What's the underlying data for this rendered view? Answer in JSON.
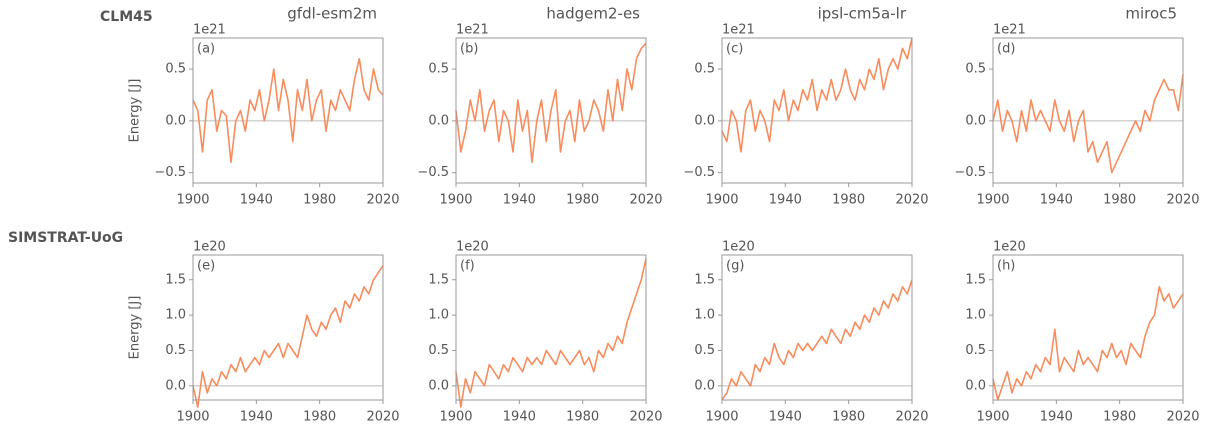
{
  "row_labels": [
    "CLM45",
    "SIMSTRAT-UoG"
  ],
  "chart_data": [
    {
      "type": "line",
      "title": "gfdl-esm2m",
      "panel_label": "(a)",
      "scale_label": "1e21",
      "ylabel": "Energy [J]",
      "x": [
        1900,
        1903,
        1906,
        1909,
        1912,
        1915,
        1918,
        1921,
        1924,
        1927,
        1930,
        1933,
        1936,
        1939,
        1942,
        1945,
        1948,
        1951,
        1954,
        1957,
        1960,
        1963,
        1966,
        1969,
        1972,
        1975,
        1978,
        1981,
        1984,
        1987,
        1990,
        1993,
        1996,
        1999,
        2002,
        2005,
        2008,
        2011,
        2014,
        2017,
        2020
      ],
      "values": [
        0.2,
        0.1,
        -0.3,
        0.2,
        0.3,
        -0.1,
        0.1,
        0.05,
        -0.4,
        0.0,
        0.1,
        -0.1,
        0.2,
        0.1,
        0.3,
        0.0,
        0.2,
        0.5,
        0.1,
        0.4,
        0.2,
        -0.2,
        0.3,
        0.1,
        0.4,
        0.0,
        0.2,
        0.3,
        -0.1,
        0.2,
        0.1,
        0.3,
        0.2,
        0.1,
        0.4,
        0.6,
        0.3,
        0.2,
        0.5,
        0.3,
        0.25
      ],
      "color": "#f98b5c",
      "hline": 0,
      "xlim": [
        1900,
        2020
      ],
      "xticks": [
        1900,
        1940,
        1980,
        2020
      ],
      "ylim": [
        -0.6,
        0.8
      ],
      "yticks": [
        {
          "value": -0.5,
          "label": "−0.5"
        },
        {
          "value": 0,
          "label": "0.0"
        },
        0.5
      ]
    },
    {
      "type": "line",
      "title": "hadgem2-es",
      "panel_label": "(b)",
      "scale_label": "1e21",
      "x": [
        1900,
        1903,
        1906,
        1909,
        1912,
        1915,
        1918,
        1921,
        1924,
        1927,
        1930,
        1933,
        1936,
        1939,
        1942,
        1945,
        1948,
        1951,
        1954,
        1957,
        1960,
        1963,
        1966,
        1969,
        1972,
        1975,
        1978,
        1981,
        1984,
        1987,
        1990,
        1993,
        1996,
        1999,
        2002,
        2005,
        2008,
        2011,
        2014,
        2017,
        2020
      ],
      "values": [
        0.1,
        -0.3,
        -0.1,
        0.2,
        0.0,
        0.3,
        -0.1,
        0.1,
        0.2,
        -0.2,
        0.1,
        0.0,
        -0.3,
        0.2,
        -0.1,
        0.1,
        -0.4,
        0.0,
        0.2,
        -0.2,
        0.1,
        0.3,
        -0.3,
        0.0,
        0.1,
        -0.2,
        0.2,
        -0.1,
        0.0,
        0.2,
        0.1,
        -0.1,
        0.3,
        0.0,
        0.4,
        0.1,
        0.5,
        0.3,
        0.6,
        0.7,
        0.75
      ],
      "color": "#f98b5c",
      "hline": 0,
      "xlim": [
        1900,
        2020
      ],
      "xticks": [
        1900,
        1940,
        1980,
        2020
      ],
      "ylim": [
        -0.6,
        0.8
      ],
      "yticks": [
        {
          "value": -0.5,
          "label": "−0.5"
        },
        {
          "value": 0,
          "label": "0.0"
        },
        0.5
      ]
    },
    {
      "type": "line",
      "title": "ipsl-cm5a-lr",
      "panel_label": "(c)",
      "scale_label": "1e21",
      "x": [
        1900,
        1903,
        1906,
        1909,
        1912,
        1915,
        1918,
        1921,
        1924,
        1927,
        1930,
        1933,
        1936,
        1939,
        1942,
        1945,
        1948,
        1951,
        1954,
        1957,
        1960,
        1963,
        1966,
        1969,
        1972,
        1975,
        1978,
        1981,
        1984,
        1987,
        1990,
        1993,
        1996,
        1999,
        2002,
        2005,
        2008,
        2011,
        2014,
        2017,
        2020
      ],
      "values": [
        -0.1,
        -0.2,
        0.1,
        0.0,
        -0.3,
        0.1,
        0.2,
        -0.1,
        0.1,
        0.0,
        -0.2,
        0.2,
        0.1,
        0.3,
        0.0,
        0.2,
        0.1,
        0.3,
        0.2,
        0.4,
        0.1,
        0.3,
        0.2,
        0.4,
        0.2,
        0.3,
        0.5,
        0.3,
        0.2,
        0.4,
        0.3,
        0.5,
        0.4,
        0.6,
        0.3,
        0.5,
        0.6,
        0.5,
        0.7,
        0.6,
        0.8
      ],
      "color": "#f98b5c",
      "hline": 0,
      "xlim": [
        1900,
        2020
      ],
      "xticks": [
        1900,
        1940,
        1980,
        2020
      ],
      "ylim": [
        -0.6,
        0.8
      ],
      "yticks": [
        {
          "value": -0.5,
          "label": "−0.5"
        },
        {
          "value": 0,
          "label": "0.0"
        },
        0.5
      ]
    },
    {
      "type": "line",
      "title": "miroc5",
      "panel_label": "(d)",
      "scale_label": "1e21",
      "x": [
        1900,
        1903,
        1906,
        1909,
        1912,
        1915,
        1918,
        1921,
        1924,
        1927,
        1930,
        1933,
        1936,
        1939,
        1942,
        1945,
        1948,
        1951,
        1954,
        1957,
        1960,
        1963,
        1966,
        1969,
        1972,
        1975,
        1978,
        1981,
        1984,
        1987,
        1990,
        1993,
        1996,
        1999,
        2002,
        2005,
        2008,
        2011,
        2014,
        2017,
        2020
      ],
      "values": [
        0.0,
        0.2,
        -0.1,
        0.1,
        0.0,
        -0.2,
        0.1,
        -0.1,
        0.2,
        0.0,
        0.1,
        0.0,
        -0.1,
        0.2,
        0.0,
        -0.1,
        0.1,
        -0.2,
        0.0,
        0.1,
        -0.3,
        -0.2,
        -0.4,
        -0.3,
        -0.2,
        -0.5,
        -0.4,
        -0.3,
        -0.2,
        -0.1,
        0.0,
        -0.1,
        0.1,
        0.0,
        0.2,
        0.3,
        0.4,
        0.3,
        0.3,
        0.1,
        0.45
      ],
      "color": "#f98b5c",
      "hline": 0,
      "xlim": [
        1900,
        2020
      ],
      "xticks": [
        1900,
        1940,
        1980,
        2020
      ],
      "ylim": [
        -0.6,
        0.8
      ],
      "yticks": [
        {
          "value": -0.5,
          "label": "−0.5"
        },
        {
          "value": 0,
          "label": "0.0"
        },
        0.5
      ]
    },
    {
      "type": "line",
      "panel_label": "(e)",
      "scale_label": "1e20",
      "ylabel": "Energy [J]",
      "x": [
        1900,
        1903,
        1906,
        1909,
        1912,
        1915,
        1918,
        1921,
        1924,
        1927,
        1930,
        1933,
        1936,
        1939,
        1942,
        1945,
        1948,
        1951,
        1954,
        1957,
        1960,
        1963,
        1966,
        1969,
        1972,
        1975,
        1978,
        1981,
        1984,
        1987,
        1990,
        1993,
        1996,
        1999,
        2002,
        2005,
        2008,
        2011,
        2014,
        2017,
        2020
      ],
      "values": [
        0.0,
        -0.3,
        0.2,
        -0.1,
        0.1,
        0.0,
        0.2,
        0.1,
        0.3,
        0.2,
        0.4,
        0.2,
        0.3,
        0.4,
        0.3,
        0.5,
        0.4,
        0.5,
        0.6,
        0.4,
        0.6,
        0.5,
        0.4,
        0.7,
        1.0,
        0.8,
        0.7,
        0.9,
        0.8,
        1.0,
        1.1,
        0.9,
        1.2,
        1.1,
        1.3,
        1.2,
        1.4,
        1.3,
        1.5,
        1.6,
        1.7
      ],
      "color": "#f98b5c",
      "hline": 0,
      "xlim": [
        1900,
        2020
      ],
      "xticks": [
        1900,
        1940,
        1980,
        2020
      ],
      "ylim": [
        -0.2,
        1.85
      ],
      "yticks": [
        {
          "value": 0,
          "label": "0.0"
        },
        0.5,
        {
          "value": 1,
          "label": "1.0"
        },
        1.5
      ]
    },
    {
      "type": "line",
      "panel_label": "(f)",
      "scale_label": "1e20",
      "x": [
        1900,
        1903,
        1906,
        1909,
        1912,
        1915,
        1918,
        1921,
        1924,
        1927,
        1930,
        1933,
        1936,
        1939,
        1942,
        1945,
        1948,
        1951,
        1954,
        1957,
        1960,
        1963,
        1966,
        1969,
        1972,
        1975,
        1978,
        1981,
        1984,
        1987,
        1990,
        1993,
        1996,
        1999,
        2002,
        2005,
        2008,
        2011,
        2014,
        2017,
        2020
      ],
      "values": [
        0.2,
        -0.3,
        0.1,
        -0.1,
        0.2,
        0.1,
        0.0,
        0.3,
        0.2,
        0.1,
        0.3,
        0.2,
        0.4,
        0.3,
        0.2,
        0.4,
        0.3,
        0.4,
        0.3,
        0.5,
        0.4,
        0.3,
        0.5,
        0.4,
        0.3,
        0.4,
        0.5,
        0.3,
        0.4,
        0.2,
        0.5,
        0.4,
        0.6,
        0.5,
        0.7,
        0.6,
        0.9,
        1.1,
        1.3,
        1.5,
        1.8
      ],
      "color": "#f98b5c",
      "hline": 0,
      "xlim": [
        1900,
        2020
      ],
      "xticks": [
        1900,
        1940,
        1980,
        2020
      ],
      "ylim": [
        -0.2,
        1.85
      ],
      "yticks": [
        {
          "value": 0,
          "label": "0.0"
        },
        0.5,
        {
          "value": 1,
          "label": "1.0"
        },
        1.5
      ]
    },
    {
      "type": "line",
      "panel_label": "(g)",
      "scale_label": "1e20",
      "x": [
        1900,
        1903,
        1906,
        1909,
        1912,
        1915,
        1918,
        1921,
        1924,
        1927,
        1930,
        1933,
        1936,
        1939,
        1942,
        1945,
        1948,
        1951,
        1954,
        1957,
        1960,
        1963,
        1966,
        1969,
        1972,
        1975,
        1978,
        1981,
        1984,
        1987,
        1990,
        1993,
        1996,
        1999,
        2002,
        2005,
        2008,
        2011,
        2014,
        2017,
        2020
      ],
      "values": [
        -0.2,
        -0.1,
        0.1,
        0.0,
        0.2,
        0.1,
        0.0,
        0.3,
        0.2,
        0.4,
        0.3,
        0.6,
        0.4,
        0.3,
        0.5,
        0.4,
        0.6,
        0.5,
        0.6,
        0.5,
        0.6,
        0.7,
        0.6,
        0.8,
        0.7,
        0.6,
        0.8,
        0.7,
        0.9,
        0.8,
        1.0,
        0.9,
        1.1,
        1.0,
        1.2,
        1.1,
        1.3,
        1.2,
        1.4,
        1.3,
        1.5
      ],
      "color": "#f98b5c",
      "hline": 0,
      "xlim": [
        1900,
        2020
      ],
      "xticks": [
        1900,
        1940,
        1980,
        2020
      ],
      "ylim": [
        -0.2,
        1.85
      ],
      "yticks": [
        {
          "value": 0,
          "label": "0.0"
        },
        0.5,
        {
          "value": 1,
          "label": "1.0"
        },
        1.5
      ]
    },
    {
      "type": "line",
      "panel_label": "(h)",
      "scale_label": "1e20",
      "x": [
        1900,
        1903,
        1906,
        1909,
        1912,
        1915,
        1918,
        1921,
        1924,
        1927,
        1930,
        1933,
        1936,
        1939,
        1942,
        1945,
        1948,
        1951,
        1954,
        1957,
        1960,
        1963,
        1966,
        1969,
        1972,
        1975,
        1978,
        1981,
        1984,
        1987,
        1990,
        1993,
        1996,
        1999,
        2002,
        2005,
        2008,
        2011,
        2014,
        2017,
        2020
      ],
      "values": [
        0.1,
        -0.2,
        0.0,
        0.2,
        -0.1,
        0.1,
        0.0,
        0.2,
        0.1,
        0.3,
        0.2,
        0.4,
        0.3,
        0.8,
        0.2,
        0.4,
        0.3,
        0.2,
        0.5,
        0.3,
        0.4,
        0.3,
        0.2,
        0.5,
        0.4,
        0.6,
        0.4,
        0.5,
        0.3,
        0.6,
        0.5,
        0.4,
        0.7,
        0.9,
        1.0,
        1.4,
        1.2,
        1.3,
        1.1,
        1.2,
        1.3
      ],
      "color": "#f98b5c",
      "hline": 0,
      "xlim": [
        1900,
        2020
      ],
      "xticks": [
        1900,
        1940,
        1980,
        2020
      ],
      "ylim": [
        -0.2,
        1.85
      ],
      "yticks": [
        {
          "value": 0,
          "label": "0.0"
        },
        0.5,
        {
          "value": 1,
          "label": "1.0"
        },
        1.5
      ]
    }
  ]
}
